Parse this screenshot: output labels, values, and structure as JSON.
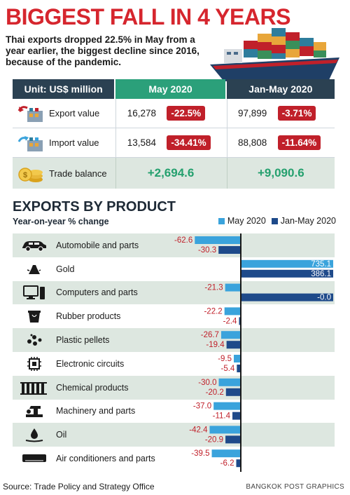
{
  "header": {
    "title": "BIGGEST FALL IN 4 YEARS",
    "intro": "Thai exports dropped 22.5% in May from a year earlier, the biggest decline since 2016, because of the pandemic."
  },
  "summary": {
    "col_unit": "Unit: US$ million",
    "col_may": "May 2020",
    "col_janmay": "Jan-May 2020",
    "rows": [
      {
        "label": "Export value",
        "may_value": "16,278",
        "may_change": "-22.5%",
        "janmay_value": "97,899",
        "janmay_change": "-3.71%"
      },
      {
        "label": "Import value",
        "may_value": "13,584",
        "may_change": "-34.41%",
        "janmay_value": "88,808",
        "janmay_change": "-11.64%"
      }
    ],
    "balance": {
      "label": "Trade balance",
      "may": "+2,694.6",
      "janmay": "+9,090.6"
    }
  },
  "exports": {
    "title": "EXPORTS BY PRODUCT",
    "subtitle": "Year-on-year % change",
    "legend_may": "May 2020",
    "legend_janmay": "Jan-May 2020"
  },
  "chart_data": {
    "type": "bar",
    "orientation": "horizontal",
    "title": "EXPORTS BY PRODUCT",
    "subtitle": "Year-on-year % change",
    "categories": [
      "Automobile and parts",
      "Gold",
      "Computers and parts",
      "Rubber products",
      "Plastic pellets",
      "Electronic circuits",
      "Chemical products",
      "Machinery and parts",
      "Oil",
      "Air conditioners and parts"
    ],
    "icons": [
      "car-icon",
      "gold-icon",
      "computer-icon",
      "rubber-icon",
      "pellets-icon",
      "circuit-icon",
      "chemical-icon",
      "machinery-icon",
      "oil-icon",
      "aircon-icon"
    ],
    "series": [
      {
        "name": "May 2020",
        "color": "#3aa3dc",
        "values": [
          -62.6,
          735.1,
          -21.3,
          -22.2,
          -26.7,
          -9.5,
          -30.0,
          -37.0,
          -42.4,
          -39.5
        ],
        "labels": [
          "-62.6",
          "735.1",
          "-21.3",
          "-22.2",
          "-26.7",
          "-9.5",
          "-30.0",
          "-37.0",
          "-42.4",
          "-39.5"
        ]
      },
      {
        "name": "Jan-May 2020",
        "color": "#1e4a8a",
        "values": [
          -30.3,
          386.1,
          -0.0,
          -2.4,
          -19.4,
          -5.4,
          -20.2,
          -11.4,
          -20.9,
          -6.2
        ],
        "labels": [
          "-30.3",
          "386.1",
          "-0.0",
          "-2.4",
          "-19.4",
          "-5.4",
          "-20.2",
          "-11.4",
          "-20.9",
          "-6.2"
        ]
      }
    ],
    "legend": "top-right"
  },
  "colors": {
    "title_red": "#d6262e",
    "badge_red": "#c0202a",
    "green": "#24a06e",
    "navy": "#2b4152",
    "may_blue": "#3aa3dc",
    "janmay_blue": "#1e4a8a",
    "label_red": "#c0202a"
  },
  "footer": {
    "source": "Source: Trade Policy and Strategy Office",
    "credit": "BANGKOK POST GRAPHICS"
  }
}
